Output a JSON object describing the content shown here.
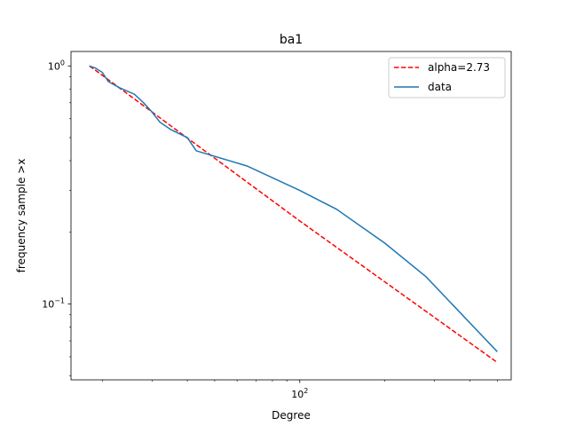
{
  "chart_data": {
    "type": "line",
    "title": "ba1",
    "xlabel": "Degree",
    "ylabel": "frequency sample >x",
    "xscale": "log",
    "yscale": "log",
    "xlim": [
      15.5,
      560
    ],
    "ylim": [
      0.048,
      1.15
    ],
    "x_ticks": [
      {
        "value": 100,
        "label": "10",
        "exp": "2"
      }
    ],
    "y_ticks": [
      {
        "value": 1,
        "label": "10",
        "exp": "0"
      },
      {
        "value": 0.1,
        "label": "10",
        "exp": "−1"
      }
    ],
    "legend_position": "top-right",
    "series": [
      {
        "name": "alpha=2.73",
        "style": "dashed",
        "color": "#ff0000",
        "x": [
          18,
          18.9,
          100,
          500
        ],
        "y": [
          1.0,
          0.96,
          0.2232,
          0.0568
        ]
      },
      {
        "name": "data",
        "style": "solid",
        "color": "#1f77b4",
        "x": [
          18,
          18.9,
          20,
          21,
          23,
          26,
          28,
          30,
          32,
          35,
          40,
          43,
          65,
          100,
          135,
          200,
          280,
          500
        ],
        "y": [
          1.0,
          0.98,
          0.94,
          0.86,
          0.81,
          0.76,
          0.7,
          0.64,
          0.58,
          0.54,
          0.5,
          0.44,
          0.38,
          0.3,
          0.25,
          0.18,
          0.13,
          0.063
        ]
      }
    ]
  }
}
